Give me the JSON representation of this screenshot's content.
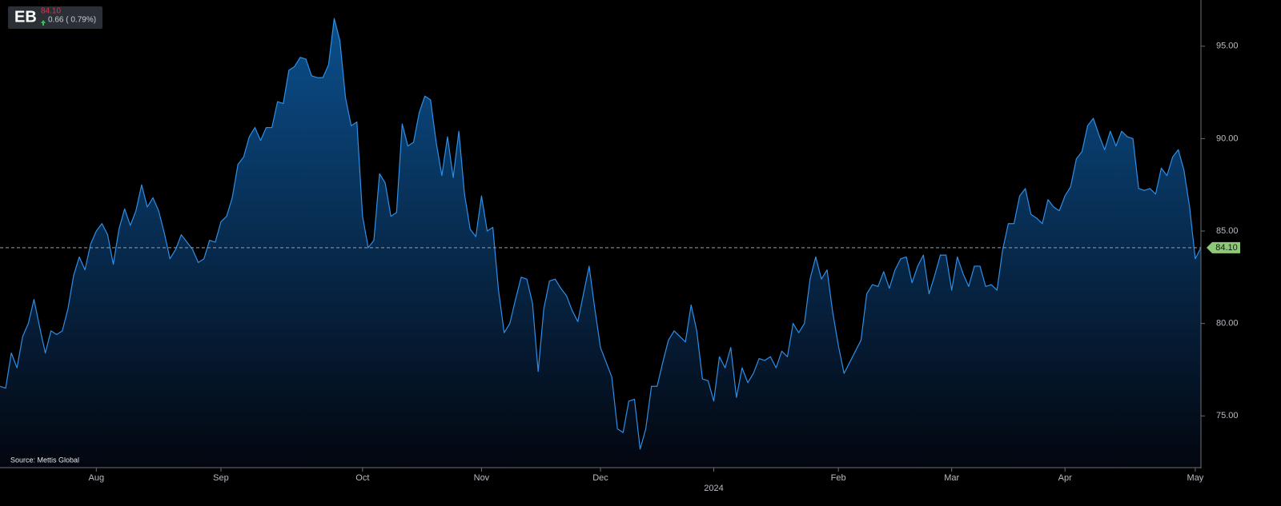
{
  "header": {
    "symbol": "EB",
    "price": "84.10",
    "change": "0.66 ( 0.79%)"
  },
  "chart_data": {
    "type": "area",
    "source": "Source: Mettis Global",
    "color": "#2e8ee6",
    "fill_top": "#0b4f8c",
    "fill_bottom": "#03060f",
    "ylim": [
      72.2,
      97.5
    ],
    "yticks": [
      {
        "value": 75,
        "label": "75.00"
      },
      {
        "value": 80,
        "label": "80.00"
      },
      {
        "value": 85,
        "label": "85.00"
      },
      {
        "value": 90,
        "label": "90.00"
      },
      {
        "value": 95,
        "label": "95.00"
      }
    ],
    "reference_line": {
      "value": 84.1,
      "label": "84.10",
      "color": "#8fc978"
    },
    "categories": [
      null,
      null,
      null,
      null,
      null,
      null,
      null,
      null,
      null,
      null,
      null,
      null,
      null,
      null,
      null,
      null,
      null,
      "Aug",
      null,
      null,
      null,
      null,
      null,
      null,
      null,
      null,
      null,
      null,
      null,
      null,
      null,
      null,
      null,
      null,
      null,
      null,
      null,
      null,
      null,
      "Sep",
      null,
      null,
      null,
      null,
      null,
      null,
      null,
      null,
      null,
      null,
      null,
      null,
      null,
      null,
      null,
      null,
      null,
      null,
      null,
      null,
      null,
      null,
      null,
      null,
      "Oct",
      null,
      null,
      null,
      null,
      null,
      null,
      null,
      null,
      null,
      null,
      null,
      null,
      null,
      null,
      null,
      null,
      null,
      null,
      null,
      null,
      "Nov",
      null,
      null,
      null,
      null,
      null,
      null,
      null,
      null,
      null,
      null,
      null,
      null,
      null,
      null,
      null,
      null,
      null,
      null,
      null,
      null,
      "Dec",
      null,
      null,
      null,
      null,
      null,
      null,
      null,
      null,
      null,
      null,
      null,
      null,
      null,
      null,
      null,
      null,
      null,
      null,
      null,
      "2024",
      null,
      null,
      null,
      null,
      null,
      null,
      null,
      null,
      null,
      null,
      null,
      null,
      null,
      null,
      null,
      null,
      null,
      null,
      null,
      null,
      null,
      "Feb",
      null,
      null,
      null,
      null,
      null,
      null,
      null,
      null,
      null,
      null,
      null,
      null,
      null,
      null,
      null,
      null,
      null,
      null,
      null,
      "Mar",
      null,
      null,
      null,
      null,
      null,
      null,
      null,
      null,
      null,
      null,
      null,
      null,
      null,
      null,
      null,
      null,
      null,
      null,
      null,
      "Apr",
      null,
      null,
      null,
      null,
      null,
      null,
      null,
      null,
      null,
      null,
      null,
      null,
      null,
      null,
      null,
      null,
      null,
      null,
      null,
      null,
      null,
      null,
      "May",
      null
    ],
    "values": [
      76.6,
      76.5,
      78.4,
      77.6,
      79.3,
      80.0,
      81.3,
      79.8,
      78.4,
      79.6,
      79.4,
      79.6,
      80.8,
      82.6,
      83.6,
      82.9,
      84.3,
      85.0,
      85.4,
      84.8,
      83.2,
      85.1,
      86.2,
      85.3,
      86.1,
      87.5,
      86.3,
      86.8,
      86.1,
      84.9,
      83.5,
      84.0,
      84.8,
      84.4,
      84.0,
      83.3,
      83.5,
      84.5,
      84.4,
      85.5,
      85.8,
      86.8,
      88.6,
      89.0,
      90.1,
      90.6,
      89.9,
      90.6,
      90.6,
      92.0,
      91.9,
      93.7,
      93.9,
      94.4,
      94.3,
      93.4,
      93.3,
      93.3,
      94.0,
      96.5,
      95.3,
      92.2,
      90.7,
      90.9,
      85.8,
      84.1,
      84.5,
      88.1,
      87.6,
      85.8,
      86.0,
      90.8,
      89.6,
      89.8,
      91.4,
      92.3,
      92.1,
      89.8,
      88.0,
      90.1,
      87.9,
      90.4,
      87.0,
      85.1,
      84.7,
      86.9,
      85.0,
      85.2,
      81.8,
      79.5,
      80.0,
      81.3,
      82.5,
      82.4,
      81.1,
      77.4,
      80.8,
      82.3,
      82.4,
      81.9,
      81.5,
      80.7,
      80.1,
      81.6,
      83.1,
      80.8,
      78.7,
      77.9,
      77.1,
      74.3,
      74.1,
      75.8,
      75.9,
      73.2,
      74.3,
      76.6,
      76.6,
      77.9,
      79.1,
      79.6,
      79.3,
      79.0,
      81.0,
      79.6,
      77.0,
      76.9,
      75.8,
      78.2,
      77.6,
      78.7,
      76.0,
      77.6,
      76.8,
      77.3,
      78.1,
      78.0,
      78.2,
      77.6,
      78.5,
      78.2,
      80.0,
      79.5,
      80.0,
      82.4,
      83.6,
      82.4,
      82.9,
      80.6,
      78.8,
      77.3,
      77.9,
      78.5,
      79.1,
      81.6,
      82.1,
      82.0,
      82.8,
      81.9,
      82.9,
      83.5,
      83.6,
      82.2,
      83.1,
      83.7,
      81.6,
      82.6,
      83.7,
      83.7,
      81.8,
      83.6,
      82.7,
      82.0,
      83.1,
      83.1,
      82.0,
      82.1,
      81.8,
      84.0,
      85.4,
      85.4,
      86.9,
      87.3,
      85.9,
      85.7,
      85.4,
      86.7,
      86.3,
      86.1,
      86.9,
      87.4,
      88.9,
      89.3,
      90.7,
      91.1,
      90.2,
      89.4,
      90.4,
      89.6,
      90.4,
      90.1,
      90.0,
      87.3,
      87.2,
      87.3,
      87.0,
      88.4,
      88.0,
      89.0,
      89.4,
      88.3,
      86.3,
      83.5,
      84.1
    ]
  }
}
